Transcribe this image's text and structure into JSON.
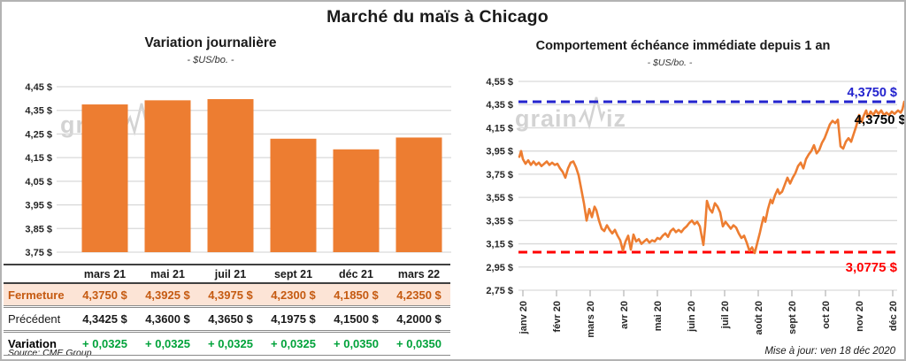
{
  "title": "Marché du maïs à Chicago",
  "watermark": {
    "part1": "grain",
    "part2": "iz"
  },
  "footer": {
    "source": "Source: CME Group",
    "updated": "Mise à jour: ven 18 déc 2020"
  },
  "table": {
    "columns": [
      "mars 21",
      "mai 21",
      "juil 21",
      "sept 21",
      "déc 21",
      "mars 22"
    ],
    "rows": [
      {
        "label": "Fermeture",
        "values": [
          "4,3750 $",
          "4,3925 $",
          "4,3975 $",
          "4,2300 $",
          "4,1850 $",
          "4,2350 $"
        ]
      },
      {
        "label": "Précédent",
        "values": [
          "4,3425 $",
          "4,3600 $",
          "4,3650 $",
          "4,1975 $",
          "4,1500 $",
          "4,2000 $"
        ]
      },
      {
        "label": "Variation",
        "values": [
          "+ 0,0325",
          "+ 0,0325",
          "+ 0,0325",
          "+ 0,0325",
          "+ 0,0350",
          "+ 0,0350"
        ]
      }
    ]
  },
  "colors": {
    "orange": "#ED7D31",
    "peach": "#FCE4D6",
    "rust": "#C55A11",
    "green": "#00A23A",
    "blue": "#2323CE",
    "red": "#FF0000",
    "grid": "#D9D9D9"
  },
  "chart_data": [
    {
      "type": "bar",
      "title": "Variation journalière",
      "subtitle": "- $US/bo. -",
      "categories": [
        "mars 21",
        "mai 21",
        "juil 21",
        "sept 21",
        "déc 21",
        "mars 22"
      ],
      "values": [
        4.375,
        4.3925,
        4.3975,
        4.23,
        4.185,
        4.235
      ],
      "ylim": [
        3.75,
        4.45
      ],
      "ytick_step": 0.1,
      "bar_color": "#ED7D31",
      "grid": true,
      "legend": "none"
    },
    {
      "type": "line",
      "title": "Comportement échéance immédiate depuis 1 an",
      "subtitle": "- $US/bo. -",
      "x_labels": [
        "janv 20",
        "févr 20",
        "mars 20",
        "avr 20",
        "mai 20",
        "juin 20",
        "juil 20",
        "août 20",
        "sept 20",
        "oct 20",
        "nov 20",
        "déc 20"
      ],
      "ylim": [
        2.75,
        4.55
      ],
      "ytick_step": 0.2,
      "line_color": "#ED7D31",
      "grid": true,
      "legend": "none",
      "high_line": {
        "value": 4.375,
        "label": "4,3750 $",
        "color": "#2323CE"
      },
      "low_line": {
        "value": 3.0775,
        "label": "3,0775 $",
        "color": "#FF0000"
      },
      "last_point_label": {
        "text": "4,3750 $",
        "color": "#000000"
      },
      "points": [
        [
          0,
          3.9
        ],
        [
          2,
          3.95
        ],
        [
          4,
          3.88
        ],
        [
          7,
          3.84
        ],
        [
          10,
          3.87
        ],
        [
          13,
          3.83
        ],
        [
          16,
          3.86
        ],
        [
          19,
          3.83
        ],
        [
          22,
          3.85
        ],
        [
          25,
          3.82
        ],
        [
          28,
          3.84
        ],
        [
          31,
          3.86
        ],
        [
          34,
          3.83
        ],
        [
          37,
          3.85
        ],
        [
          40,
          3.83
        ],
        [
          43,
          3.84
        ],
        [
          46,
          3.8
        ],
        [
          49,
          3.77
        ],
        [
          52,
          3.72
        ],
        [
          55,
          3.8
        ],
        [
          58,
          3.85
        ],
        [
          61,
          3.86
        ],
        [
          64,
          3.81
        ],
        [
          67,
          3.74
        ],
        [
          70,
          3.62
        ],
        [
          73,
          3.5
        ],
        [
          76,
          3.35
        ],
        [
          79,
          3.45
        ],
        [
          82,
          3.38
        ],
        [
          85,
          3.47
        ],
        [
          87,
          3.44
        ],
        [
          90,
          3.35
        ],
        [
          93,
          3.28
        ],
        [
          96,
          3.26
        ],
        [
          99,
          3.31
        ],
        [
          102,
          3.27
        ],
        [
          105,
          3.24
        ],
        [
          108,
          3.27
        ],
        [
          111,
          3.22
        ],
        [
          114,
          3.18
        ],
        [
          117,
          3.09
        ],
        [
          120,
          3.17
        ],
        [
          123,
          3.22
        ],
        [
          126,
          3.1
        ],
        [
          129,
          3.23
        ],
        [
          132,
          3.17
        ],
        [
          135,
          3.19
        ],
        [
          138,
          3.15
        ],
        [
          141,
          3.17
        ],
        [
          144,
          3.19
        ],
        [
          147,
          3.16
        ],
        [
          150,
          3.18
        ],
        [
          153,
          3.17
        ],
        [
          156,
          3.2
        ],
        [
          159,
          3.19
        ],
        [
          162,
          3.22
        ],
        [
          165,
          3.24
        ],
        [
          168,
          3.21
        ],
        [
          171,
          3.26
        ],
        [
          174,
          3.28
        ],
        [
          177,
          3.25
        ],
        [
          180,
          3.27
        ],
        [
          183,
          3.25
        ],
        [
          186,
          3.28
        ],
        [
          189,
          3.3
        ],
        [
          192,
          3.33
        ],
        [
          195,
          3.35
        ],
        [
          198,
          3.32
        ],
        [
          201,
          3.34
        ],
        [
          204,
          3.3
        ],
        [
          206,
          3.22
        ],
        [
          208,
          3.14
        ],
        [
          210,
          3.3
        ],
        [
          212,
          3.52
        ],
        [
          215,
          3.45
        ],
        [
          218,
          3.42
        ],
        [
          221,
          3.5
        ],
        [
          224,
          3.47
        ],
        [
          227,
          3.42
        ],
        [
          230,
          3.3
        ],
        [
          233,
          3.34
        ],
        [
          236,
          3.31
        ],
        [
          239,
          3.28
        ],
        [
          242,
          3.31
        ],
        [
          245,
          3.29
        ],
        [
          248,
          3.24
        ],
        [
          251,
          3.2
        ],
        [
          254,
          3.22
        ],
        [
          257,
          3.16
        ],
        [
          260,
          3.09
        ],
        [
          263,
          3.12
        ],
        [
          266,
          3.07
        ],
        [
          269,
          3.16
        ],
        [
          272,
          3.25
        ],
        [
          274,
          3.32
        ],
        [
          276,
          3.38
        ],
        [
          278,
          3.34
        ],
        [
          281,
          3.45
        ],
        [
          284,
          3.53
        ],
        [
          286,
          3.5
        ],
        [
          289,
          3.57
        ],
        [
          292,
          3.62
        ],
        [
          294,
          3.58
        ],
        [
          297,
          3.6
        ],
        [
          300,
          3.66
        ],
        [
          303,
          3.72
        ],
        [
          306,
          3.67
        ],
        [
          309,
          3.72
        ],
        [
          312,
          3.76
        ],
        [
          315,
          3.82
        ],
        [
          318,
          3.85
        ],
        [
          321,
          3.8
        ],
        [
          324,
          3.88
        ],
        [
          327,
          3.92
        ],
        [
          330,
          3.95
        ],
        [
          333,
          4.0
        ],
        [
          336,
          3.93
        ],
        [
          339,
          3.96
        ],
        [
          342,
          4.02
        ],
        [
          345,
          4.06
        ],
        [
          348,
          4.12
        ],
        [
          351,
          4.18
        ],
        [
          354,
          4.21
        ],
        [
          357,
          4.19
        ],
        [
          360,
          4.22
        ],
        [
          363,
          3.99
        ],
        [
          366,
          3.97
        ],
        [
          369,
          4.03
        ],
        [
          372,
          4.06
        ],
        [
          375,
          4.03
        ],
        [
          378,
          4.1
        ],
        [
          381,
          4.17
        ],
        [
          384,
          4.26
        ],
        [
          387,
          4.2
        ],
        [
          389,
          4.25
        ],
        [
          392,
          4.3
        ],
        [
          394,
          4.24
        ],
        [
          397,
          4.29
        ],
        [
          400,
          4.26
        ],
        [
          403,
          4.3
        ],
        [
          406,
          4.27
        ],
        [
          409,
          4.3
        ],
        [
          412,
          4.26
        ],
        [
          415,
          4.28
        ],
        [
          418,
          4.26
        ],
        [
          421,
          4.29
        ],
        [
          424,
          4.27
        ],
        [
          428,
          4.3
        ],
        [
          431,
          4.28
        ],
        [
          433,
          4.31
        ],
        [
          435,
          4.375
        ]
      ]
    }
  ]
}
